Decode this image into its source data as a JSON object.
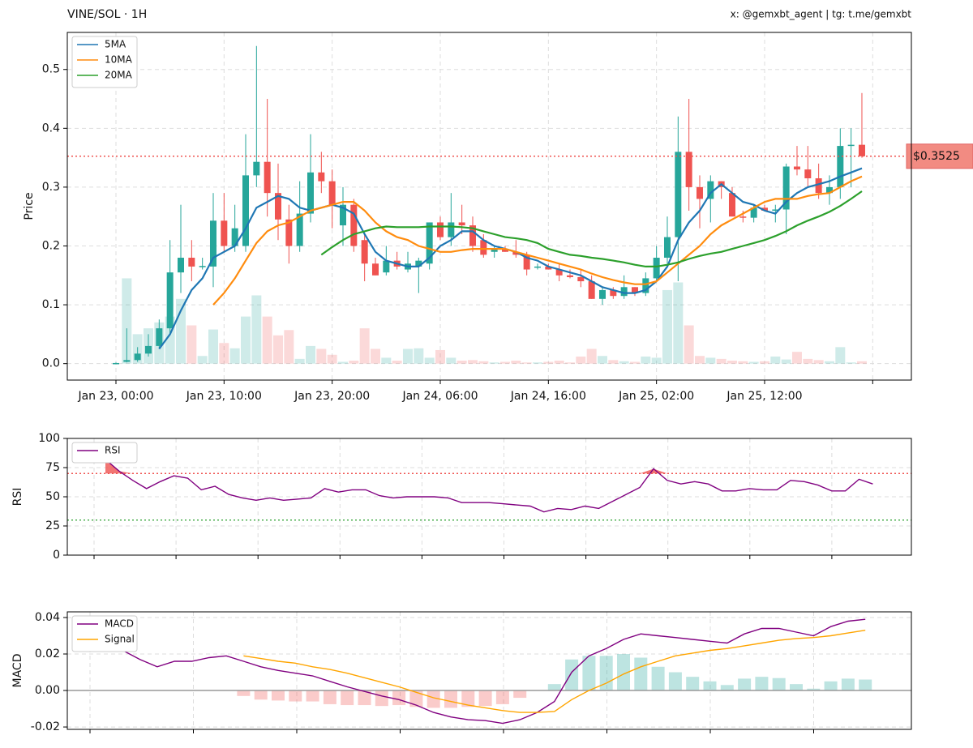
{
  "chart_data": [
    {
      "type": "candlestick",
      "title": "VINE/SOL · 1H",
      "subtitle": "x: @gemxbt_agent | tg: t.me/gemxbt",
      "y_label": "Price",
      "x": [
        "Jan 23, 00:00",
        "Jan 23, 01:00",
        "Jan 23, 02:00",
        "Jan 23, 03:00",
        "Jan 23, 04:00",
        "Jan 23, 05:00",
        "Jan 23, 06:00",
        "Jan 23, 07:00",
        "Jan 23, 08:00",
        "Jan 23, 09:00",
        "Jan 23, 10:00",
        "Jan 23, 11:00",
        "Jan 23, 12:00",
        "Jan 23, 13:00",
        "Jan 23, 14:00",
        "Jan 23, 15:00",
        "Jan 23, 16:00",
        "Jan 23, 17:00",
        "Jan 23, 18:00",
        "Jan 23, 19:00",
        "Jan 23, 20:00",
        "Jan 23, 21:00",
        "Jan 23, 22:00",
        "Jan 23, 23:00",
        "Jan 24, 00:00",
        "Jan 24, 01:00",
        "Jan 24, 02:00",
        "Jan 24, 03:00",
        "Jan 24, 04:00",
        "Jan 24, 05:00",
        "Jan 24, 06:00",
        "Jan 24, 07:00",
        "Jan 24, 08:00",
        "Jan 24, 09:00",
        "Jan 24, 10:00",
        "Jan 24, 11:00",
        "Jan 24, 12:00",
        "Jan 24, 13:00",
        "Jan 24, 14:00",
        "Jan 24, 15:00",
        "Jan 24, 16:00",
        "Jan 24, 17:00",
        "Jan 24, 18:00",
        "Jan 24, 19:00",
        "Jan 24, 20:00",
        "Jan 24, 21:00",
        "Jan 24, 22:00",
        "Jan 24, 23:00",
        "Jan 25, 00:00",
        "Jan 25, 01:00",
        "Jan 25, 02:00",
        "Jan 25, 03:00",
        "Jan 25, 04:00",
        "Jan 25, 05:00",
        "Jan 25, 06:00",
        "Jan 25, 07:00",
        "Jan 25, 08:00",
        "Jan 25, 09:00",
        "Jan 25, 10:00",
        "Jan 25, 11:00",
        "Jan 25, 12:00",
        "Jan 25, 13:00",
        "Jan 25, 14:00",
        "Jan 25, 15:00",
        "Jan 25, 16:00",
        "Jan 25, 17:00",
        "Jan 25, 18:00",
        "Jan 25, 19:00",
        "Jan 25, 20:00",
        "Jan 25, 21:00"
      ],
      "open": [
        0.001,
        0.003,
        0.006,
        0.017,
        0.03,
        0.06,
        0.155,
        0.18,
        0.165,
        0.165,
        0.243,
        0.2,
        0.2,
        0.32,
        0.343,
        0.29,
        0.245,
        0.2,
        0.255,
        0.325,
        0.31,
        0.235,
        0.27,
        0.21,
        0.17,
        0.155,
        0.175,
        0.16,
        0.165,
        0.17,
        0.24,
        0.215,
        0.24,
        0.235,
        0.21,
        0.19,
        0.195,
        0.19,
        0.185,
        0.165,
        0.165,
        0.16,
        0.15,
        0.147,
        0.14,
        0.11,
        0.125,
        0.115,
        0.13,
        0.12,
        0.145,
        0.18,
        0.215,
        0.36,
        0.3,
        0.28,
        0.31,
        0.29,
        0.25,
        0.248,
        0.265,
        0.26,
        0.262,
        0.335,
        0.33,
        0.315,
        0.29,
        0.3,
        0.37,
        0.372
      ],
      "high": [
        0.002,
        0.06,
        0.028,
        0.05,
        0.075,
        0.21,
        0.27,
        0.21,
        0.18,
        0.29,
        0.29,
        0.27,
        0.39,
        0.54,
        0.45,
        0.34,
        0.27,
        0.31,
        0.39,
        0.36,
        0.33,
        0.3,
        0.28,
        0.22,
        0.18,
        0.2,
        0.19,
        0.19,
        0.18,
        0.24,
        0.25,
        0.29,
        0.27,
        0.25,
        0.22,
        0.2,
        0.2,
        0.21,
        0.19,
        0.17,
        0.17,
        0.17,
        0.16,
        0.16,
        0.15,
        0.13,
        0.13,
        0.15,
        0.13,
        0.155,
        0.2,
        0.25,
        0.42,
        0.45,
        0.32,
        0.32,
        0.31,
        0.3,
        0.26,
        0.27,
        0.27,
        0.27,
        0.34,
        0.37,
        0.37,
        0.34,
        0.32,
        0.4,
        0.4,
        0.46
      ],
      "low": [
        0.0,
        0.002,
        0.003,
        0.012,
        0.025,
        0.05,
        0.12,
        0.14,
        0.16,
        0.13,
        0.19,
        0.19,
        0.19,
        0.3,
        0.25,
        0.21,
        0.17,
        0.19,
        0.24,
        0.29,
        0.23,
        0.2,
        0.19,
        0.14,
        0.15,
        0.15,
        0.16,
        0.155,
        0.12,
        0.16,
        0.21,
        0.2,
        0.22,
        0.19,
        0.18,
        0.18,
        0.19,
        0.18,
        0.15,
        0.16,
        0.16,
        0.14,
        0.145,
        0.13,
        0.11,
        0.1,
        0.11,
        0.11,
        0.115,
        0.115,
        0.14,
        0.17,
        0.14,
        0.26,
        0.23,
        0.24,
        0.28,
        0.25,
        0.24,
        0.24,
        0.26,
        0.24,
        0.22,
        0.32,
        0.3,
        0.28,
        0.27,
        0.28,
        0.3,
        0.35
      ],
      "close": [
        0.001,
        0.006,
        0.017,
        0.03,
        0.06,
        0.155,
        0.18,
        0.165,
        0.166,
        0.243,
        0.2,
        0.23,
        0.32,
        0.343,
        0.29,
        0.245,
        0.2,
        0.255,
        0.325,
        0.31,
        0.27,
        0.27,
        0.2,
        0.17,
        0.15,
        0.175,
        0.165,
        0.17,
        0.175,
        0.24,
        0.215,
        0.24,
        0.235,
        0.2,
        0.185,
        0.195,
        0.19,
        0.185,
        0.16,
        0.165,
        0.16,
        0.15,
        0.147,
        0.14,
        0.11,
        0.125,
        0.115,
        0.13,
        0.12,
        0.145,
        0.18,
        0.215,
        0.36,
        0.3,
        0.28,
        0.31,
        0.3,
        0.25,
        0.248,
        0.265,
        0.26,
        0.262,
        0.335,
        0.33,
        0.315,
        0.29,
        0.3,
        0.37,
        0.372,
        0.3525
      ],
      "volume": [
        0,
        0.145,
        0.05,
        0.06,
        0.07,
        0.08,
        0.11,
        0.065,
        0.013,
        0.058,
        0.035,
        0.026,
        0.08,
        0.116,
        0.08,
        0.048,
        0.057,
        0.008,
        0.03,
        0.025,
        0.015,
        0.003,
        0.005,
        0.06,
        0.025,
        0.01,
        0.005,
        0.025,
        0.026,
        0.01,
        0.023,
        0.01,
        0.005,
        0.006,
        0.004,
        0.002,
        0.003,
        0.005,
        0.002,
        0.002,
        0.003,
        0.005,
        0.002,
        0.012,
        0.025,
        0.013,
        0.006,
        0.004,
        0.003,
        0.012,
        0.01,
        0.125,
        0.138,
        0.065,
        0.013,
        0.01,
        0.008,
        0.005,
        0.004,
        0.003,
        0.004,
        0.012,
        0.007,
        0.02,
        0.008,
        0.006,
        0.004,
        0.028,
        0.002,
        0.004
      ],
      "up_color": "#26a69a",
      "down_color": "#ef5350",
      "series": [
        {
          "name": "5MA",
          "color": "#1f77b4",
          "values": [
            null,
            null,
            null,
            null,
            0.025,
            0.05,
            0.09,
            0.125,
            0.145,
            0.18,
            0.19,
            0.2,
            0.23,
            0.265,
            0.275,
            0.285,
            0.28,
            0.265,
            0.26,
            0.265,
            0.27,
            0.265,
            0.255,
            0.22,
            0.19,
            0.175,
            0.17,
            0.165,
            0.165,
            0.18,
            0.2,
            0.21,
            0.225,
            0.225,
            0.21,
            0.2,
            0.195,
            0.19,
            0.18,
            0.175,
            0.165,
            0.16,
            0.155,
            0.15,
            0.14,
            0.13,
            0.125,
            0.12,
            0.12,
            0.125,
            0.14,
            0.165,
            0.21,
            0.24,
            0.26,
            0.29,
            0.305,
            0.29,
            0.275,
            0.27,
            0.26,
            0.255,
            0.275,
            0.29,
            0.3,
            0.305,
            0.31,
            0.318,
            0.325,
            0.332
          ]
        },
        {
          "name": "10MA",
          "color": "#ff8c0e",
          "values": [
            null,
            null,
            null,
            null,
            null,
            null,
            null,
            null,
            null,
            0.1,
            0.12,
            0.145,
            0.175,
            0.205,
            0.225,
            0.235,
            0.24,
            0.25,
            0.26,
            0.265,
            0.27,
            0.275,
            0.275,
            0.26,
            0.24,
            0.225,
            0.215,
            0.21,
            0.2,
            0.195,
            0.19,
            0.19,
            0.193,
            0.195,
            0.195,
            0.195,
            0.195,
            0.19,
            0.185,
            0.18,
            0.175,
            0.17,
            0.165,
            0.16,
            0.153,
            0.147,
            0.142,
            0.138,
            0.135,
            0.135,
            0.14,
            0.155,
            0.17,
            0.185,
            0.2,
            0.22,
            0.235,
            0.245,
            0.255,
            0.265,
            0.275,
            0.28,
            0.28,
            0.28,
            0.285,
            0.288,
            0.29,
            0.3,
            0.31,
            0.318
          ]
        },
        {
          "name": "20MA",
          "color": "#2ca02c",
          "values": [
            null,
            null,
            null,
            null,
            null,
            null,
            null,
            null,
            null,
            null,
            null,
            null,
            null,
            null,
            null,
            null,
            null,
            null,
            null,
            0.185,
            0.198,
            0.21,
            0.22,
            0.225,
            0.23,
            0.233,
            0.232,
            0.232,
            0.232,
            0.233,
            0.233,
            0.233,
            0.232,
            0.23,
            0.225,
            0.22,
            0.215,
            0.213,
            0.21,
            0.205,
            0.195,
            0.19,
            0.185,
            0.183,
            0.18,
            0.178,
            0.175,
            0.172,
            0.168,
            0.165,
            0.165,
            0.168,
            0.172,
            0.178,
            0.183,
            0.187,
            0.19,
            0.195,
            0.2,
            0.205,
            0.21,
            0.217,
            0.225,
            0.235,
            0.243,
            0.25,
            0.258,
            0.268,
            0.28,
            0.293
          ]
        }
      ],
      "ylim": [
        -0.028,
        0.563
      ],
      "yticks": [
        {
          "value": 0,
          "label": "0.0"
        },
        0.1,
        0.2,
        0.3,
        0.4,
        0.5
      ],
      "grid": true,
      "legend": "upper left",
      "last_price": {
        "value": 0.3525,
        "label": "$0.3525"
      }
    },
    {
      "type": "line",
      "y_label": "RSI",
      "series": [
        {
          "name": "RSI",
          "color": "#800080",
          "values": [
            82,
            72,
            64,
            57,
            63,
            68,
            66,
            56,
            59,
            52,
            49,
            47,
            49,
            47,
            48,
            49,
            57,
            54,
            56,
            56,
            51,
            49,
            50,
            50,
            50,
            49,
            45,
            45,
            45,
            44,
            43,
            42,
            37,
            40,
            39,
            42,
            40,
            46,
            52,
            58,
            74,
            64,
            61,
            63,
            61,
            55,
            55,
            57,
            56,
            56,
            64,
            63,
            60,
            55,
            55,
            65,
            61
          ]
        }
      ],
      "ylim": [
        0,
        100
      ],
      "yticks": [
        0,
        25,
        50,
        75,
        100
      ],
      "overbought": 70,
      "oversold": 30,
      "grid": true,
      "legend": "upper left"
    },
    {
      "type": "macd",
      "y_label": "MACD",
      "series": [
        {
          "name": "MACD",
          "color": "#800080",
          "values": [
            0.027,
            0.022,
            0.017,
            0.013,
            0.016,
            0.016,
            0.018,
            0.019,
            0.016,
            0.013,
            0.011,
            0.0095,
            0.008,
            0.005,
            0.002,
            -0.0005,
            -0.003,
            -0.005,
            -0.008,
            -0.012,
            -0.0145,
            -0.016,
            -0.0165,
            -0.018,
            -0.016,
            -0.012,
            -0.006,
            0.01,
            0.019,
            0.023,
            0.028,
            0.031,
            0.03,
            0.029,
            0.028,
            0.027,
            0.026,
            0.031,
            0.034,
            0.034,
            0.032,
            0.03,
            0.035,
            0.038,
            0.039
          ]
        },
        {
          "name": "Signal",
          "color": "#ffa500",
          "values": [
            null,
            null,
            null,
            null,
            null,
            null,
            null,
            null,
            0.019,
            0.0175,
            0.016,
            0.015,
            0.013,
            0.0115,
            0.0095,
            0.007,
            0.0045,
            0.002,
            -0.001,
            -0.004,
            -0.006,
            -0.008,
            -0.0095,
            -0.011,
            -0.012,
            -0.012,
            -0.0115,
            -0.005,
            0.0,
            0.004,
            0.009,
            0.013,
            0.016,
            0.019,
            0.0205,
            0.022,
            0.023,
            0.0245,
            0.026,
            0.0275,
            0.0285,
            0.029,
            0.03,
            0.0315,
            0.033
          ]
        }
      ],
      "histogram": [
        null,
        null,
        null,
        null,
        null,
        null,
        null,
        null,
        -0.003,
        -0.005,
        -0.0055,
        -0.006,
        -0.006,
        -0.0075,
        -0.008,
        -0.008,
        -0.0085,
        -0.008,
        -0.009,
        -0.0095,
        -0.0095,
        -0.009,
        -0.0085,
        -0.0075,
        -0.004,
        0,
        0.0035,
        0.017,
        0.019,
        0.019,
        0.02,
        0.018,
        0.013,
        0.01,
        0.0075,
        0.005,
        0.003,
        0.0065,
        0.0075,
        0.0068,
        0.0035,
        0.001,
        0.005,
        0.0065,
        0.006
      ],
      "ylim": [
        -0.0213,
        0.0431
      ],
      "yticks": [
        -0.02,
        {
          "value": 0,
          "label": "0.00"
        },
        0.02,
        0.04
      ],
      "grid": true,
      "legend": "upper left"
    }
  ]
}
